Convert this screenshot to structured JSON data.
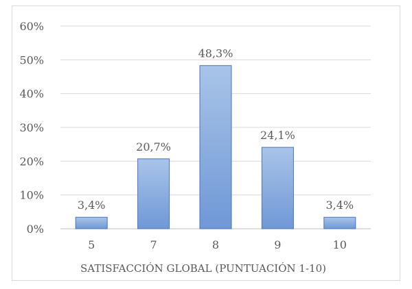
{
  "chart_data": {
    "type": "bar",
    "title": "",
    "xlabel": "SATISFACCIÓN GLOBAL (PUNTUACIÓN 1-10)",
    "ylabel": "",
    "categories": [
      "5",
      "7",
      "8",
      "9",
      "10"
    ],
    "values": [
      3.4,
      20.7,
      48.3,
      24.1,
      3.4
    ],
    "data_labels": [
      "3,4%",
      "20,7%",
      "48,3%",
      "24,1%",
      "3,4%"
    ],
    "ylim": [
      0,
      60
    ],
    "y_ticks": [
      0,
      10,
      20,
      30,
      40,
      50,
      60
    ],
    "y_tick_labels": [
      "0%",
      "10%",
      "20%",
      "30%",
      "40%",
      "50%",
      "60%"
    ],
    "grid": true,
    "legend": "none",
    "colors": {
      "bar_fill_top": "#a9c4e8",
      "bar_fill_bottom": "#6f98d6",
      "bar_stroke": "#4a74b8",
      "grid": "#d9d9d9",
      "text": "#595959"
    }
  }
}
